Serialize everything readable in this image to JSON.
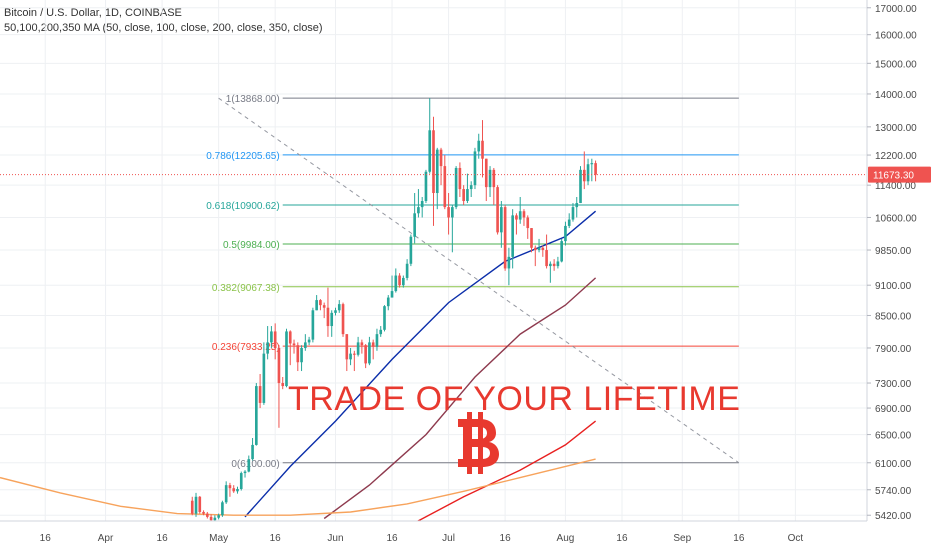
{
  "header": {
    "symbol_line": "Bitcoin / U.S. Dollar, 1D, COINBASE",
    "indicator_line": "50,100,200,350 MA (50, close, 100, close, 200, close, 350, close)"
  },
  "overlay": {
    "text": "TRADE OF YOUR LIFETIME",
    "icon": "bitcoin-icon"
  },
  "colors": {
    "up": "#26a69a",
    "down": "#ef5350",
    "ma50": "#0b2eaa",
    "ma100": "#8e3a4e",
    "ma200": "#e82020",
    "ma350": "#f7a35c",
    "last_price": "#ef5350",
    "overlay_text": "#e8392f"
  },
  "chart_data": {
    "type": "candlestick",
    "symbol": "Bitcoin / U.S. Dollar",
    "interval": "1D",
    "exchange": "COINBASE",
    "y_scale": "log",
    "ylim": [
      5350,
      17300
    ],
    "yticks": [
      5420,
      5740,
      6100,
      6500,
      6900,
      7300,
      7900,
      8500,
      9100,
      9850,
      10600,
      11400,
      12200,
      13000,
      14000,
      15000,
      16000,
      17000
    ],
    "ytick_labels": [
      "5420.00",
      "5740.00",
      "6100.00",
      "6500.00",
      "6900.00",
      "7300.00",
      "7900.00",
      "8500.00",
      "9100.00",
      "9850.00",
      "10600.00",
      "11400.00",
      "12200.00",
      "13000.00",
      "14000.00",
      "15000.00",
      "16000.00",
      "17000.00"
    ],
    "xlim": [
      "2019-03-04",
      "2019-10-20"
    ],
    "xticks": [
      {
        "date": "2019-03-16",
        "label": "16"
      },
      {
        "date": "2019-04-01",
        "label": "Apr"
      },
      {
        "date": "2019-04-16",
        "label": "16"
      },
      {
        "date": "2019-05-01",
        "label": "May"
      },
      {
        "date": "2019-05-16",
        "label": "16"
      },
      {
        "date": "2019-06-01",
        "label": "Jun"
      },
      {
        "date": "2019-06-16",
        "label": "16"
      },
      {
        "date": "2019-07-01",
        "label": "Jul"
      },
      {
        "date": "2019-07-16",
        "label": "16"
      },
      {
        "date": "2019-08-01",
        "label": "Aug"
      },
      {
        "date": "2019-08-16",
        "label": "16"
      },
      {
        "date": "2019-09-01",
        "label": "Sep"
      },
      {
        "date": "2019-09-16",
        "label": "16"
      },
      {
        "date": "2019-10-01",
        "label": "Oct"
      }
    ],
    "last_price": 11673.3,
    "last_price_label": "11673.30",
    "fib_levels": [
      {
        "label": "1(13868.00)",
        "value": 13868.0,
        "color": "#787b86"
      },
      {
        "label": "0.786(12205.65)",
        "value": 12205.65,
        "color": "#2196f3"
      },
      {
        "label": "0.618(10900.62)",
        "value": 10900.62,
        "color": "#26a69a"
      },
      {
        "label": "0.5(9984.00)",
        "value": 9984.0,
        "color": "#4caf50"
      },
      {
        "label": "0.382(9067.38)",
        "value": 9067.38,
        "color": "#8bc34a"
      },
      {
        "label": "0.236(7933.25)",
        "value": 7933.25,
        "color": "#f44336"
      },
      {
        "label": "0(6100.00)",
        "value": 6100.0,
        "color": "#787b86"
      }
    ],
    "fib_range_dates": [
      "2019-05-18",
      "2019-09-16"
    ],
    "trendline": {
      "from": {
        "date": "2019-05-01",
        "value": 13868
      },
      "to": {
        "date": "2019-09-16",
        "value": 6100
      }
    },
    "candles": [
      {
        "d": "2019-04-24",
        "o": 5600,
        "h": 5650,
        "l": 5420,
        "c": 5440
      },
      {
        "d": "2019-04-25",
        "o": 5440,
        "h": 5700,
        "l": 5400,
        "c": 5650
      },
      {
        "d": "2019-04-26",
        "o": 5650,
        "h": 5660,
        "l": 5440,
        "c": 5460
      },
      {
        "d": "2019-04-27",
        "o": 5460,
        "h": 5480,
        "l": 5420,
        "c": 5440
      },
      {
        "d": "2019-04-28",
        "o": 5440,
        "h": 5460,
        "l": 5380,
        "c": 5400
      },
      {
        "d": "2019-04-29",
        "o": 5400,
        "h": 5430,
        "l": 5340,
        "c": 5360
      },
      {
        "d": "2019-04-30",
        "o": 5360,
        "h": 5420,
        "l": 5330,
        "c": 5390
      },
      {
        "d": "2019-05-01",
        "o": 5390,
        "h": 5440,
        "l": 5370,
        "c": 5420
      },
      {
        "d": "2019-05-02",
        "o": 5420,
        "h": 5600,
        "l": 5400,
        "c": 5580
      },
      {
        "d": "2019-05-03",
        "o": 5580,
        "h": 5850,
        "l": 5560,
        "c": 5800
      },
      {
        "d": "2019-05-04",
        "o": 5800,
        "h": 5830,
        "l": 5650,
        "c": 5760
      },
      {
        "d": "2019-05-05",
        "o": 5760,
        "h": 5800,
        "l": 5700,
        "c": 5720
      },
      {
        "d": "2019-05-06",
        "o": 5720,
        "h": 5780,
        "l": 5690,
        "c": 5750
      },
      {
        "d": "2019-05-07",
        "o": 5750,
        "h": 5980,
        "l": 5730,
        "c": 5960
      },
      {
        "d": "2019-05-08",
        "o": 5960,
        "h": 6000,
        "l": 5900,
        "c": 5980
      },
      {
        "d": "2019-05-09",
        "o": 5980,
        "h": 6200,
        "l": 5970,
        "c": 6150
      },
      {
        "d": "2019-05-10",
        "o": 6150,
        "h": 6450,
        "l": 6130,
        "c": 6350
      },
      {
        "d": "2019-05-11",
        "o": 6350,
        "h": 7300,
        "l": 6340,
        "c": 7250
      },
      {
        "d": "2019-05-12",
        "o": 7250,
        "h": 7450,
        "l": 6900,
        "c": 6980
      },
      {
        "d": "2019-05-13",
        "o": 6980,
        "h": 8000,
        "l": 6950,
        "c": 7800
      },
      {
        "d": "2019-05-14",
        "o": 7800,
        "h": 8300,
        "l": 7700,
        "c": 8000
      },
      {
        "d": "2019-05-15",
        "o": 8000,
        "h": 8300,
        "l": 7900,
        "c": 8200
      },
      {
        "d": "2019-05-16",
        "o": 8200,
        "h": 8350,
        "l": 7700,
        "c": 7900
      },
      {
        "d": "2019-05-17",
        "o": 7900,
        "h": 7950,
        "l": 6600,
        "c": 7300
      },
      {
        "d": "2019-05-18",
        "o": 7300,
        "h": 7400,
        "l": 7200,
        "c": 7250
      },
      {
        "d": "2019-05-19",
        "o": 7250,
        "h": 8250,
        "l": 7230,
        "c": 8200
      },
      {
        "d": "2019-05-20",
        "o": 8200,
        "h": 8220,
        "l": 7600,
        "c": 7980
      },
      {
        "d": "2019-05-21",
        "o": 7980,
        "h": 8050,
        "l": 7800,
        "c": 7950
      },
      {
        "d": "2019-05-22",
        "o": 7950,
        "h": 8000,
        "l": 7500,
        "c": 7650
      },
      {
        "d": "2019-05-23",
        "o": 7650,
        "h": 7950,
        "l": 7500,
        "c": 7900
      },
      {
        "d": "2019-05-24",
        "o": 7900,
        "h": 8150,
        "l": 7850,
        "c": 8000
      },
      {
        "d": "2019-05-25",
        "o": 8000,
        "h": 8100,
        "l": 7950,
        "c": 8050
      },
      {
        "d": "2019-05-26",
        "o": 8050,
        "h": 8650,
        "l": 8000,
        "c": 8600
      },
      {
        "d": "2019-05-27",
        "o": 8600,
        "h": 8900,
        "l": 8600,
        "c": 8800
      },
      {
        "d": "2019-05-28",
        "o": 8800,
        "h": 8820,
        "l": 8600,
        "c": 8700
      },
      {
        "d": "2019-05-29",
        "o": 8700,
        "h": 8750,
        "l": 8450,
        "c": 8650
      },
      {
        "d": "2019-05-30",
        "o": 8650,
        "h": 9050,
        "l": 8100,
        "c": 8300
      },
      {
        "d": "2019-05-31",
        "o": 8300,
        "h": 8600,
        "l": 8100,
        "c": 8550
      },
      {
        "d": "2019-06-01",
        "o": 8550,
        "h": 8650,
        "l": 8500,
        "c": 8600
      },
      {
        "d": "2019-06-02",
        "o": 8600,
        "h": 8800,
        "l": 8550,
        "c": 8720
      },
      {
        "d": "2019-06-03",
        "o": 8720,
        "h": 8750,
        "l": 8100,
        "c": 8150
      },
      {
        "d": "2019-06-04",
        "o": 8150,
        "h": 8150,
        "l": 7500,
        "c": 7700
      },
      {
        "d": "2019-06-05",
        "o": 7700,
        "h": 7900,
        "l": 7600,
        "c": 7800
      },
      {
        "d": "2019-06-06",
        "o": 7800,
        "h": 7850,
        "l": 7500,
        "c": 7780
      },
      {
        "d": "2019-06-07",
        "o": 7780,
        "h": 8100,
        "l": 7750,
        "c": 8000
      },
      {
        "d": "2019-06-08",
        "o": 8000,
        "h": 8050,
        "l": 7800,
        "c": 7950
      },
      {
        "d": "2019-06-09",
        "o": 7950,
        "h": 7970,
        "l": 7550,
        "c": 7630
      },
      {
        "d": "2019-06-10",
        "o": 7630,
        "h": 8100,
        "l": 7600,
        "c": 8000
      },
      {
        "d": "2019-06-11",
        "o": 8000,
        "h": 8050,
        "l": 7700,
        "c": 7920
      },
      {
        "d": "2019-06-12",
        "o": 7920,
        "h": 8250,
        "l": 7850,
        "c": 8150
      },
      {
        "d": "2019-06-13",
        "o": 8150,
        "h": 8300,
        "l": 8100,
        "c": 8230
      },
      {
        "d": "2019-06-14",
        "o": 8230,
        "h": 8700,
        "l": 8200,
        "c": 8680
      },
      {
        "d": "2019-06-15",
        "o": 8680,
        "h": 8900,
        "l": 8600,
        "c": 8850
      },
      {
        "d": "2019-06-16",
        "o": 8850,
        "h": 9300,
        "l": 8850,
        "c": 8980
      },
      {
        "d": "2019-06-17",
        "o": 8980,
        "h": 9450,
        "l": 8950,
        "c": 9300
      },
      {
        "d": "2019-06-18",
        "o": 9300,
        "h": 9350,
        "l": 9050,
        "c": 9100
      },
      {
        "d": "2019-06-19",
        "o": 9100,
        "h": 9300,
        "l": 9050,
        "c": 9250
      },
      {
        "d": "2019-06-20",
        "o": 9250,
        "h": 9650,
        "l": 9200,
        "c": 9550
      },
      {
        "d": "2019-06-21",
        "o": 9550,
        "h": 10200,
        "l": 9500,
        "c": 10150
      },
      {
        "d": "2019-06-22",
        "o": 10150,
        "h": 11200,
        "l": 10000,
        "c": 10700
      },
      {
        "d": "2019-06-23",
        "o": 10700,
        "h": 11300,
        "l": 10600,
        "c": 10850
      },
      {
        "d": "2019-06-24",
        "o": 10850,
        "h": 11100,
        "l": 10600,
        "c": 11000
      },
      {
        "d": "2019-06-25",
        "o": 11000,
        "h": 11800,
        "l": 10950,
        "c": 11750
      },
      {
        "d": "2019-06-26",
        "o": 11750,
        "h": 13868,
        "l": 11700,
        "c": 12900
      },
      {
        "d": "2019-06-27",
        "o": 12900,
        "h": 13300,
        "l": 10400,
        "c": 11200
      },
      {
        "d": "2019-06-28",
        "o": 11200,
        "h": 12400,
        "l": 10800,
        "c": 12350
      },
      {
        "d": "2019-06-29",
        "o": 12350,
        "h": 12400,
        "l": 11400,
        "c": 11900
      },
      {
        "d": "2019-06-30",
        "o": 11900,
        "h": 12200,
        "l": 10800,
        "c": 10850
      },
      {
        "d": "2019-07-01",
        "o": 10850,
        "h": 11200,
        "l": 10200,
        "c": 10600
      },
      {
        "d": "2019-07-02",
        "o": 10600,
        "h": 10900,
        "l": 9800,
        "c": 10850
      },
      {
        "d": "2019-07-03",
        "o": 10850,
        "h": 11900,
        "l": 10800,
        "c": 11850
      },
      {
        "d": "2019-07-04",
        "o": 11850,
        "h": 12000,
        "l": 11100,
        "c": 11300
      },
      {
        "d": "2019-07-05",
        "o": 11300,
        "h": 11400,
        "l": 10900,
        "c": 11000
      },
      {
        "d": "2019-07-06",
        "o": 11000,
        "h": 11700,
        "l": 10950,
        "c": 11300
      },
      {
        "d": "2019-07-07",
        "o": 11300,
        "h": 11500,
        "l": 11100,
        "c": 11400
      },
      {
        "d": "2019-07-08",
        "o": 11400,
        "h": 12400,
        "l": 11300,
        "c": 12300
      },
      {
        "d": "2019-07-09",
        "o": 12300,
        "h": 12800,
        "l": 12100,
        "c": 12600
      },
      {
        "d": "2019-07-10",
        "o": 12600,
        "h": 13200,
        "l": 11600,
        "c": 12100
      },
      {
        "d": "2019-07-11",
        "o": 12100,
        "h": 12100,
        "l": 11000,
        "c": 11350
      },
      {
        "d": "2019-07-12",
        "o": 11350,
        "h": 11900,
        "l": 11100,
        "c": 11800
      },
      {
        "d": "2019-07-13",
        "o": 11800,
        "h": 11850,
        "l": 10900,
        "c": 11350
      },
      {
        "d": "2019-07-14",
        "o": 11350,
        "h": 11400,
        "l": 10200,
        "c": 10250
      },
      {
        "d": "2019-07-15",
        "o": 10250,
        "h": 11000,
        "l": 9900,
        "c": 10850
      },
      {
        "d": "2019-07-16",
        "o": 10850,
        "h": 10900,
        "l": 9400,
        "c": 9450
      },
      {
        "d": "2019-07-17",
        "o": 9450,
        "h": 9900,
        "l": 9100,
        "c": 9700
      },
      {
        "d": "2019-07-18",
        "o": 9700,
        "h": 10800,
        "l": 9450,
        "c": 10650
      },
      {
        "d": "2019-07-19",
        "o": 10650,
        "h": 10700,
        "l": 10200,
        "c": 10550
      },
      {
        "d": "2019-07-20",
        "o": 10550,
        "h": 11100,
        "l": 10450,
        "c": 10750
      },
      {
        "d": "2019-07-21",
        "o": 10750,
        "h": 10800,
        "l": 10400,
        "c": 10600
      },
      {
        "d": "2019-07-22",
        "o": 10600,
        "h": 10650,
        "l": 10100,
        "c": 10350
      },
      {
        "d": "2019-07-23",
        "o": 10350,
        "h": 10350,
        "l": 9800,
        "c": 9900
      },
      {
        "d": "2019-07-24",
        "o": 9900,
        "h": 9950,
        "l": 9500,
        "c": 9850
      },
      {
        "d": "2019-07-25",
        "o": 9850,
        "h": 10100,
        "l": 9800,
        "c": 9900
      },
      {
        "d": "2019-07-26",
        "o": 9900,
        "h": 9950,
        "l": 9700,
        "c": 9850
      },
      {
        "d": "2019-07-27",
        "o": 9850,
        "h": 10200,
        "l": 9450,
        "c": 9500
      },
      {
        "d": "2019-07-28",
        "o": 9500,
        "h": 9600,
        "l": 9150,
        "c": 9550
      },
      {
        "d": "2019-07-29",
        "o": 9550,
        "h": 9650,
        "l": 9400,
        "c": 9500
      },
      {
        "d": "2019-07-30",
        "o": 9500,
        "h": 9700,
        "l": 9450,
        "c": 9600
      },
      {
        "d": "2019-07-31",
        "o": 9600,
        "h": 10100,
        "l": 9580,
        "c": 10050
      },
      {
        "d": "2019-08-01",
        "o": 10050,
        "h": 10500,
        "l": 9950,
        "c": 10400
      },
      {
        "d": "2019-08-02",
        "o": 10400,
        "h": 10700,
        "l": 10350,
        "c": 10550
      },
      {
        "d": "2019-08-03",
        "o": 10550,
        "h": 10950,
        "l": 10500,
        "c": 10850
      },
      {
        "d": "2019-08-04",
        "o": 10850,
        "h": 11100,
        "l": 10600,
        "c": 10950
      },
      {
        "d": "2019-08-05",
        "o": 10950,
        "h": 11900,
        "l": 10950,
        "c": 11800
      },
      {
        "d": "2019-08-06",
        "o": 11800,
        "h": 12300,
        "l": 11300,
        "c": 11500
      },
      {
        "d": "2019-08-07",
        "o": 11500,
        "h": 12100,
        "l": 11400,
        "c": 11950
      },
      {
        "d": "2019-08-08",
        "o": 11950,
        "h": 12100,
        "l": 11500,
        "c": 11980
      },
      {
        "d": "2019-08-09",
        "o": 11980,
        "h": 12050,
        "l": 11500,
        "c": 11673.3
      }
    ],
    "moving_averages": [
      {
        "name": "MA 50",
        "length": 50,
        "color": "#0b2eaa",
        "points": [
          [
            "2019-05-08",
            5400
          ],
          [
            "2019-05-20",
            6050
          ],
          [
            "2019-06-01",
            6700
          ],
          [
            "2019-06-16",
            7700
          ],
          [
            "2019-07-01",
            8750
          ],
          [
            "2019-07-16",
            9600
          ],
          [
            "2019-08-01",
            10150
          ],
          [
            "2019-08-09",
            10750
          ]
        ]
      },
      {
        "name": "MA 100",
        "length": 100,
        "color": "#8e3a4e",
        "points": [
          [
            "2019-05-29",
            5380
          ],
          [
            "2019-06-10",
            5800
          ],
          [
            "2019-06-25",
            6500
          ],
          [
            "2019-07-08",
            7400
          ],
          [
            "2019-07-20",
            8150
          ],
          [
            "2019-08-01",
            8700
          ],
          [
            "2019-08-09",
            9250
          ]
        ]
      },
      {
        "name": "MA 200",
        "length": 200,
        "color": "#e82020",
        "points": [
          [
            "2019-06-22",
            5330
          ],
          [
            "2019-07-05",
            5650
          ],
          [
            "2019-07-20",
            6000
          ],
          [
            "2019-08-01",
            6350
          ],
          [
            "2019-08-09",
            6700
          ]
        ]
      },
      {
        "name": "MA 350",
        "length": 350,
        "color": "#f7a35c",
        "points": [
          [
            "2019-03-04",
            5900
          ],
          [
            "2019-03-20",
            5700
          ],
          [
            "2019-04-05",
            5530
          ],
          [
            "2019-04-20",
            5440
          ],
          [
            "2019-05-05",
            5420
          ],
          [
            "2019-05-20",
            5420
          ],
          [
            "2019-06-05",
            5460
          ],
          [
            "2019-06-20",
            5560
          ],
          [
            "2019-07-05",
            5720
          ],
          [
            "2019-07-20",
            5900
          ],
          [
            "2019-08-09",
            6150
          ]
        ]
      }
    ]
  }
}
